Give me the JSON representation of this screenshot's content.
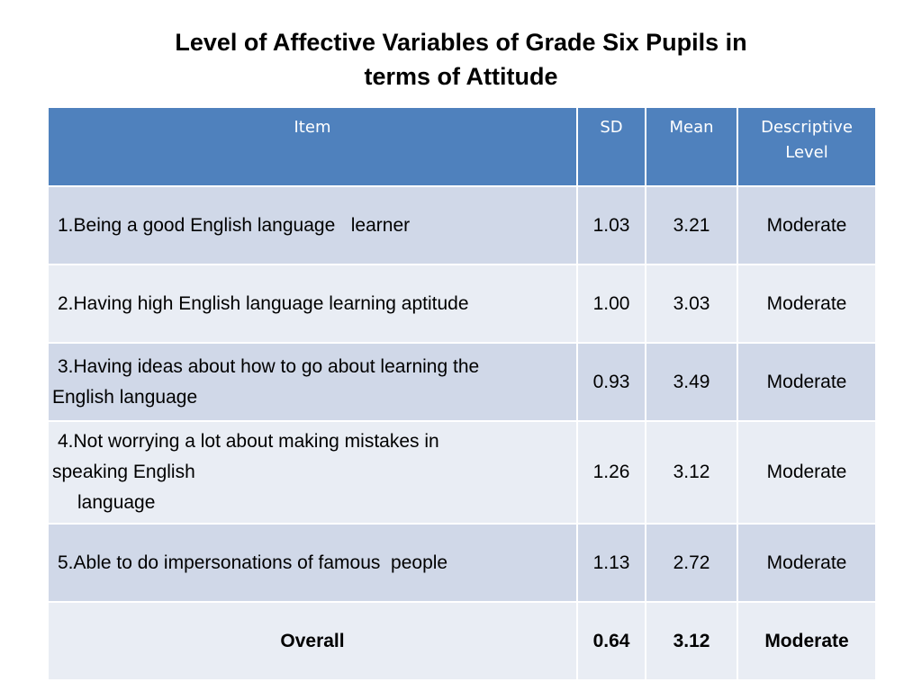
{
  "title": {
    "line1": "Level of Affective Variables of Grade Six Pupils in",
    "line2": "terms of Attitude"
  },
  "table": {
    "headers": {
      "item": "Item",
      "sd": "SD",
      "mean": "Mean",
      "level_line1": "Descriptive",
      "level_line2": "Level"
    },
    "rows": [
      {
        "item_lines": [
          "1.Being a good English language   learner"
        ],
        "sd": "1.03",
        "mean": "3.21",
        "level": "Moderate"
      },
      {
        "item_lines": [
          "2.Having high English language learning aptitude"
        ],
        "sd": "1.00",
        "mean": "3.03",
        "level": "Moderate"
      },
      {
        "item_lines": [
          "3.Having ideas about how to go about learning the",
          "English language"
        ],
        "sd": "0.93",
        "mean": "3.49",
        "level": "Moderate"
      },
      {
        "item_lines": [
          "4.Not worrying a lot about making mistakes in",
          "speaking English",
          "language"
        ],
        "sd": "1.26",
        "mean": "3.12",
        "level": "Moderate"
      },
      {
        "item_lines": [
          "5.Able to do impersonations of famous  people"
        ],
        "sd": "1.13",
        "mean": "2.72",
        "level": "Moderate"
      }
    ],
    "overall": {
      "label": "Overall",
      "sd": "0.64",
      "mean": "3.12",
      "level": "Moderate"
    }
  }
}
